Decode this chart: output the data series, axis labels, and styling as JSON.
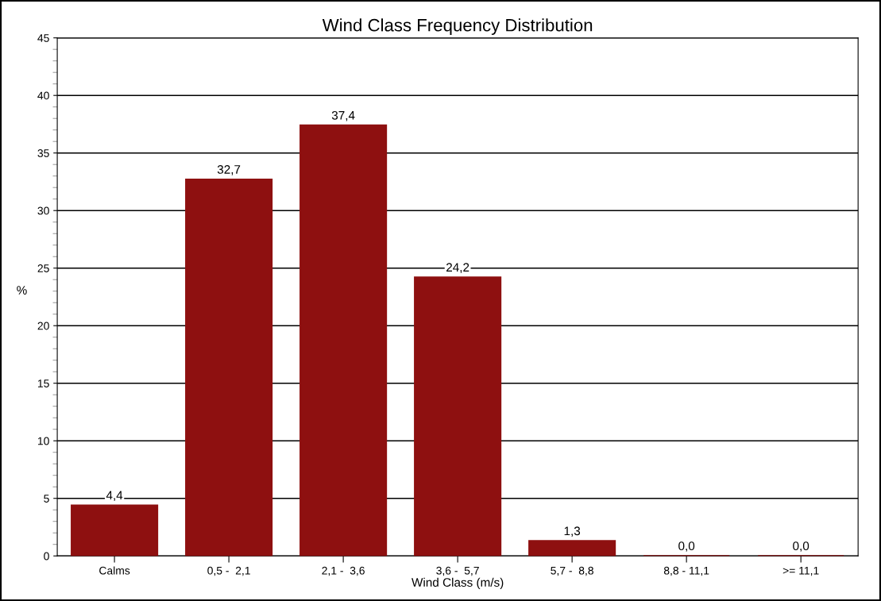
{
  "chart_data": {
    "type": "bar",
    "title": "Wind Class Frequency Distribution",
    "xlabel": "Wind Class (m/s)",
    "ylabel": "%",
    "categories": [
      "Calms",
      "0,5 -  2,1",
      "2,1 -  3,6",
      "3,6 -  5,7",
      "5,7 -  8,8",
      "8,8 - 11,1",
      ">= 11,1"
    ],
    "values": [
      4.4,
      32.7,
      37.4,
      24.2,
      1.3,
      0.0,
      0.0
    ],
    "value_labels": [
      "4,4",
      "32,7",
      "37,4",
      "24,2",
      "1,3",
      "0,0",
      "0,0"
    ],
    "color": "#8e1010",
    "ylim": [
      0,
      45
    ],
    "yticks": [
      0,
      5,
      10,
      15,
      20,
      25,
      30,
      35,
      40,
      45
    ],
    "grid": "y"
  }
}
